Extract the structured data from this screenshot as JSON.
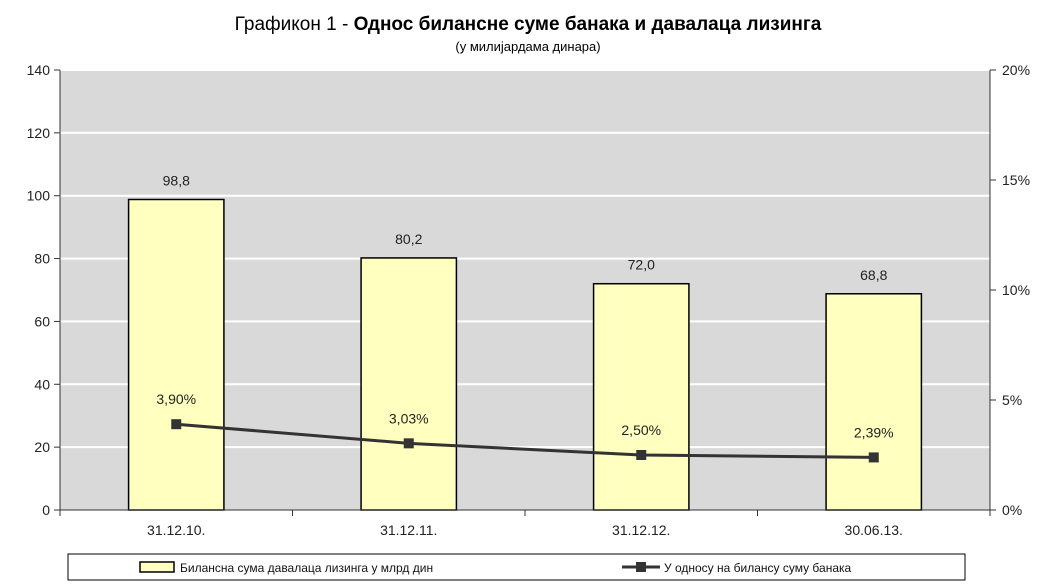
{
  "chart_data": {
    "type": "bar",
    "title_prefix": "Графикон 1 - ",
    "title_main": "Однос билансне суме банака и давалаца лизинга",
    "subtitle": "(у милијардама динара)",
    "categories": [
      "31.12.10.",
      "31.12.11.",
      "31.12.12.",
      "30.06.13."
    ],
    "series": [
      {
        "name": "Билансна сума давалаца лизинга у млрд дин",
        "type": "bar",
        "axis": "left",
        "values": [
          98.8,
          80.2,
          72.0,
          68.8
        ],
        "labels": [
          "98,8",
          "80,2",
          "72,0",
          "68,8"
        ],
        "color": "#ffffc0"
      },
      {
        "name": "У односу на билансу суму банака",
        "type": "line",
        "axis": "right",
        "values": [
          3.9,
          3.03,
          2.5,
          2.39
        ],
        "labels": [
          "3,90%",
          "3,03%",
          "2,50%",
          "2,39%"
        ],
        "color": "#333333"
      }
    ],
    "y_left": {
      "min": 0,
      "max": 140,
      "ticks": [
        0,
        20,
        40,
        60,
        80,
        100,
        120,
        140
      ]
    },
    "y_right": {
      "min": 0,
      "max": 20,
      "ticks": [
        0,
        5,
        10,
        15,
        20
      ],
      "tick_labels": [
        "0%",
        "5%",
        "10%",
        "15%",
        "20%"
      ]
    },
    "grid": true,
    "legend_position": "bottom",
    "plot_background": "#d9d9d9"
  }
}
